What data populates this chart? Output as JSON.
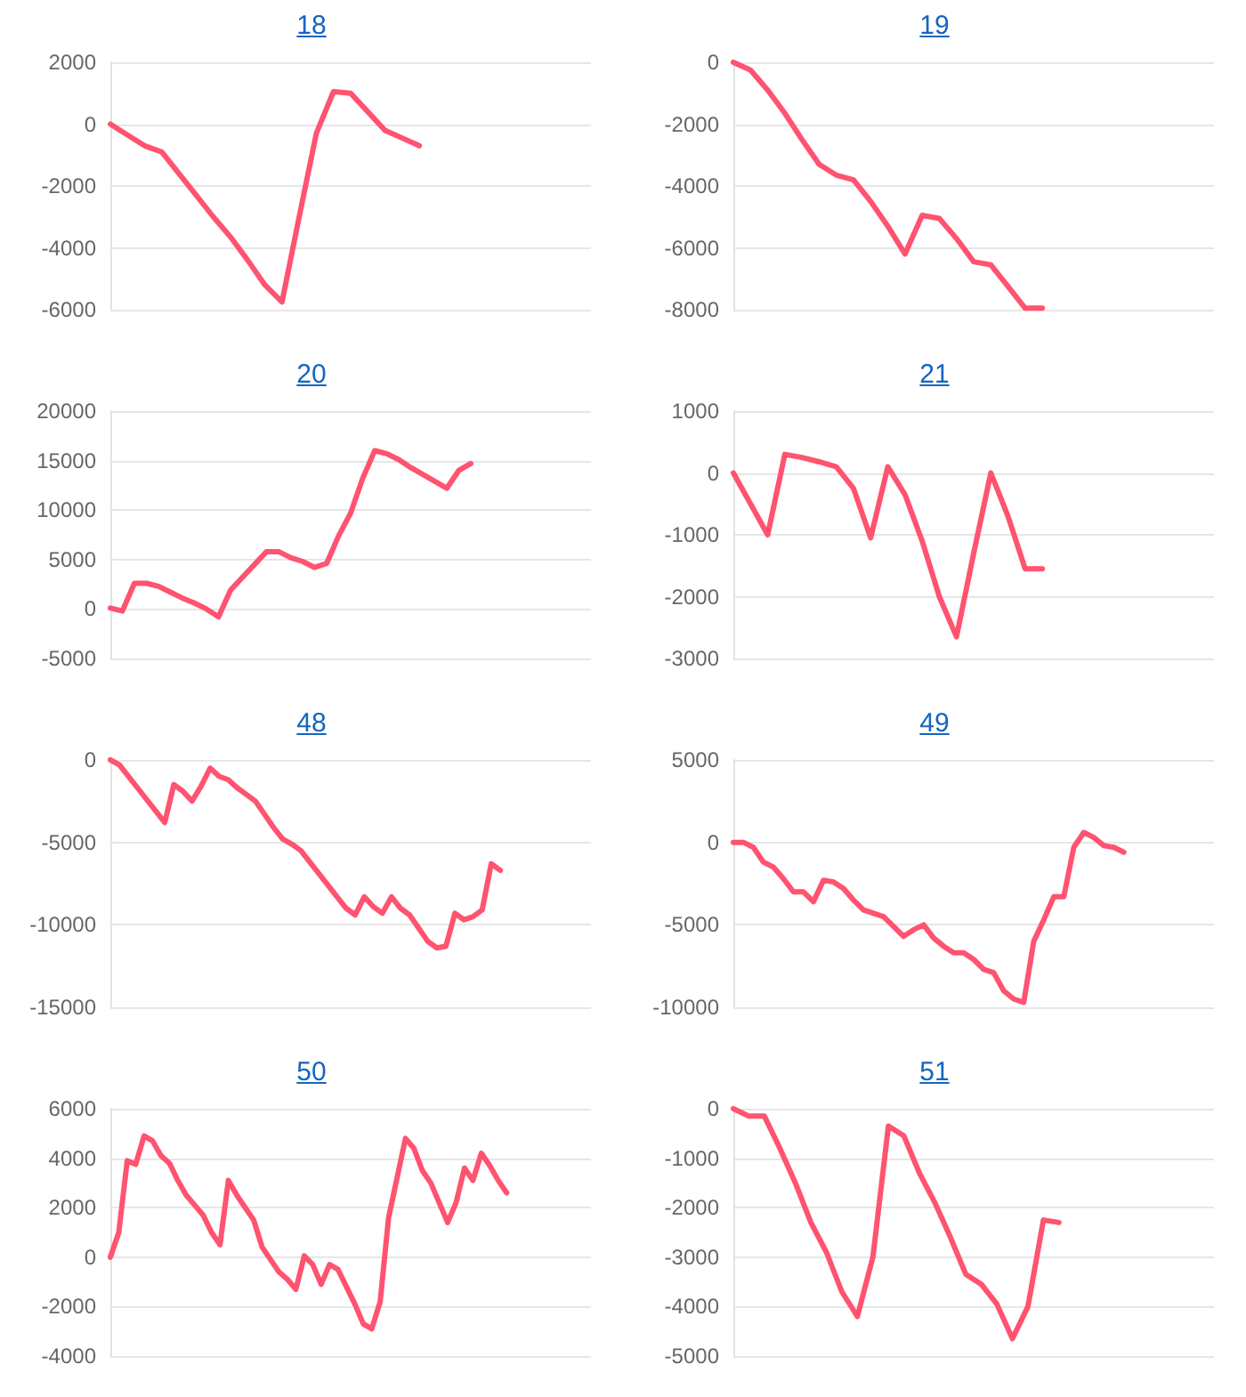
{
  "chart_data": [
    {
      "type": "line",
      "title": "18",
      "color": "#ff5370",
      "marker": "none",
      "line_style": "solid",
      "grid": "y",
      "tick_labels": "y",
      "ylim": [
        -6000,
        2000
      ],
      "yticks": [
        -6000,
        -4000,
        -2000,
        0,
        2000
      ],
      "categories": [
        null,
        null,
        null,
        null,
        null,
        null,
        null,
        null,
        null,
        null,
        null,
        null,
        null,
        null,
        null,
        null,
        null,
        null,
        null,
        null,
        null,
        null,
        null,
        null,
        null,
        null,
        null,
        null,
        null
      ],
      "values": [
        0,
        -350,
        -700,
        -900,
        -1600,
        -2300,
        -3000,
        -3650,
        -4400,
        -5200,
        -5750,
        -3000,
        -300,
        1050,
        1000,
        400,
        -200,
        -450,
        -700,
        null,
        null,
        null,
        null,
        null,
        null,
        null,
        null,
        null,
        null
      ]
    },
    {
      "type": "line",
      "title": "19",
      "color": "#ff5370",
      "marker": "none",
      "line_style": "solid",
      "grid": "y",
      "tick_labels": "y",
      "ylim": [
        -8000,
        0
      ],
      "yticks": [
        -8000,
        -6000,
        -4000,
        -2000,
        0
      ],
      "categories": [
        null,
        null,
        null,
        null,
        null,
        null,
        null,
        null,
        null,
        null,
        null,
        null,
        null,
        null,
        null,
        null,
        null,
        null,
        null,
        null,
        null,
        null,
        null,
        null,
        null,
        null,
        null,
        null,
        null
      ],
      "values": [
        0,
        -250,
        -900,
        -1650,
        -2500,
        -3300,
        -3650,
        -3800,
        -4500,
        -5300,
        -6200,
        -4950,
        -5050,
        -5700,
        -6450,
        -6550,
        -7250,
        -7950,
        -7950,
        null,
        null,
        null,
        null,
        null,
        null,
        null,
        null,
        null,
        null
      ]
    },
    {
      "type": "line",
      "title": "20",
      "color": "#ff5370",
      "marker": "none",
      "line_style": "solid",
      "grid": "y",
      "tick_labels": "y",
      "ylim": [
        -5000,
        20000
      ],
      "yticks": [
        -5000,
        0,
        5000,
        10000,
        15000,
        20000
      ],
      "categories": [
        null,
        null,
        null,
        null,
        null,
        null,
        null,
        null,
        null,
        null,
        null,
        null,
        null,
        null,
        null,
        null,
        null,
        null,
        null,
        null,
        null,
        null,
        null,
        null,
        null,
        null,
        null,
        null,
        null,
        null,
        null,
        null,
        null,
        null,
        null,
        null,
        null,
        null,
        null,
        null,
        null
      ],
      "values": [
        100,
        -200,
        2600,
        2600,
        2300,
        1700,
        1100,
        600,
        0,
        -800,
        1900,
        3200,
        4500,
        5800,
        5800,
        5200,
        4800,
        4200,
        4600,
        7400,
        9700,
        13200,
        16000,
        15700,
        15100,
        14300,
        13600,
        12900,
        12200,
        14000,
        14700,
        null,
        null,
        null,
        null,
        null,
        null,
        null,
        null,
        null,
        null
      ]
    },
    {
      "type": "line",
      "title": "21",
      "color": "#ff5370",
      "marker": "none",
      "line_style": "solid",
      "grid": "y",
      "tick_labels": "y",
      "ylim": [
        -3000,
        1000
      ],
      "yticks": [
        -3000,
        -2000,
        -1000,
        0,
        1000
      ],
      "categories": [
        null,
        null,
        null,
        null,
        null,
        null,
        null,
        null,
        null,
        null,
        null,
        null,
        null,
        null,
        null,
        null,
        null,
        null,
        null,
        null,
        null,
        null,
        null,
        null,
        null,
        null,
        null,
        null,
        null
      ],
      "values": [
        0,
        -500,
        -1000,
        300,
        250,
        180,
        100,
        -250,
        -1050,
        100,
        -350,
        -1100,
        -2000,
        -2650,
        -1300,
        0,
        -700,
        -1550,
        -1550,
        null,
        null,
        null,
        null,
        null,
        null,
        null,
        null,
        null,
        null
      ]
    },
    {
      "type": "line",
      "title": "48",
      "color": "#ff5370",
      "marker": "none",
      "line_style": "solid",
      "grid": "y",
      "tick_labels": "y",
      "ylim": [
        -15000,
        0
      ],
      "yticks": [
        -15000,
        -10000,
        -5000,
        0
      ],
      "categories": [
        null,
        null,
        null,
        null,
        null,
        null,
        null,
        null,
        null,
        null,
        null,
        null,
        null,
        null,
        null,
        null,
        null,
        null,
        null,
        null,
        null,
        null,
        null,
        null,
        null,
        null,
        null,
        null,
        null,
        null,
        null,
        null,
        null,
        null,
        null,
        null,
        null,
        null,
        null,
        null,
        null,
        null,
        null,
        null,
        null,
        null,
        null,
        null,
        null,
        null,
        null,
        null,
        null,
        null
      ],
      "values": [
        0,
        -300,
        -1000,
        -1700,
        -2400,
        -3100,
        -3800,
        -1500,
        -1900,
        -2500,
        -1600,
        -500,
        -1000,
        -1200,
        -1700,
        -2100,
        -2500,
        -3300,
        -4100,
        -4800,
        -5100,
        -5500,
        -6200,
        -6900,
        -7600,
        -8300,
        -9000,
        -9400,
        -8300,
        -8900,
        -9300,
        -8300,
        -9000,
        -9400,
        -10200,
        -11000,
        -11400,
        -11300,
        -9300,
        -9700,
        -9500,
        -9100,
        -6300,
        -6700,
        null,
        null,
        null,
        null,
        null,
        null,
        null,
        null,
        null,
        null
      ]
    },
    {
      "type": "line",
      "title": "49",
      "color": "#ff5370",
      "marker": "none",
      "line_style": "solid",
      "grid": "y",
      "tick_labels": "y",
      "ylim": [
        -10000,
        5000
      ],
      "yticks": [
        -10000,
        -5000,
        0,
        5000
      ],
      "categories": [
        null,
        null,
        null,
        null,
        null,
        null,
        null,
        null,
        null,
        null,
        null,
        null,
        null,
        null,
        null,
        null,
        null,
        null,
        null,
        null,
        null,
        null,
        null,
        null,
        null,
        null,
        null,
        null,
        null,
        null,
        null,
        null,
        null,
        null,
        null,
        null,
        null,
        null,
        null,
        null,
        null,
        null,
        null,
        null,
        null,
        null,
        null,
        null,
        null
      ],
      "values": [
        0,
        0,
        -300,
        -1200,
        -1500,
        -2200,
        -3000,
        -3000,
        -3600,
        -2300,
        -2400,
        -2800,
        -3500,
        -4100,
        -4300,
        -4500,
        -5100,
        -5700,
        -5300,
        -5000,
        -5800,
        -6300,
        -6700,
        -6700,
        -7100,
        -7700,
        -7900,
        -9000,
        -9500,
        -9700,
        -6000,
        -4700,
        -3300,
        -3300,
        -300,
        600,
        300,
        -200,
        -300,
        -600,
        null,
        null,
        null,
        null,
        null,
        null,
        null,
        null,
        null
      ]
    },
    {
      "type": "line",
      "title": "50",
      "color": "#ff5370",
      "marker": "none",
      "line_style": "solid",
      "grid": "y",
      "tick_labels": "y",
      "ylim": [
        -4000,
        6000
      ],
      "yticks": [
        -4000,
        -2000,
        0,
        2000,
        4000,
        6000
      ],
      "categories": [
        null,
        null,
        null,
        null,
        null,
        null,
        null,
        null,
        null,
        null,
        null,
        null,
        null,
        null,
        null,
        null,
        null,
        null,
        null,
        null,
        null,
        null,
        null,
        null,
        null,
        null,
        null,
        null,
        null,
        null,
        null,
        null,
        null,
        null,
        null,
        null,
        null,
        null,
        null,
        null,
        null,
        null,
        null,
        null,
        null,
        null,
        null,
        null,
        null,
        null,
        null,
        null,
        null,
        null,
        null,
        null,
        null,
        null
      ],
      "values": [
        0,
        1000,
        3900,
        3750,
        4900,
        4700,
        4100,
        3800,
        3100,
        2500,
        2100,
        1700,
        1000,
        500,
        3100,
        2500,
        2000,
        1500,
        400,
        -100,
        -600,
        -900,
        -1300,
        50,
        -300,
        -1100,
        -300,
        -500,
        -1200,
        -1900,
        -2700,
        -2900,
        -1800,
        1600,
        3200,
        4800,
        4400,
        3500,
        3000,
        2200,
        1400,
        2200,
        3600,
        3100,
        4200,
        3700,
        3100,
        2600,
        null,
        null,
        null,
        null,
        null,
        null,
        null,
        null,
        null,
        null
      ]
    },
    {
      "type": "line",
      "title": "51",
      "color": "#ff5370",
      "marker": "none",
      "line_style": "solid",
      "grid": "y",
      "tick_labels": "y",
      "ylim": [
        -5000,
        0
      ],
      "yticks": [
        -5000,
        -4000,
        -3000,
        -2000,
        -1000,
        0
      ],
      "categories": [
        null,
        null,
        null,
        null,
        null,
        null,
        null,
        null,
        null,
        null,
        null,
        null,
        null,
        null,
        null,
        null,
        null,
        null,
        null,
        null,
        null,
        null,
        null,
        null,
        null,
        null,
        null,
        null,
        null,
        null,
        null,
        null
      ],
      "values": [
        0,
        -150,
        -150,
        -800,
        -1500,
        -2300,
        -2900,
        -3700,
        -4200,
        -3000,
        -350,
        -550,
        -1300,
        -1900,
        -2600,
        -3350,
        -3550,
        -3950,
        -4650,
        -4000,
        -2250,
        -2300,
        null,
        null,
        null,
        null,
        null,
        null,
        null,
        null,
        null,
        null
      ]
    }
  ]
}
